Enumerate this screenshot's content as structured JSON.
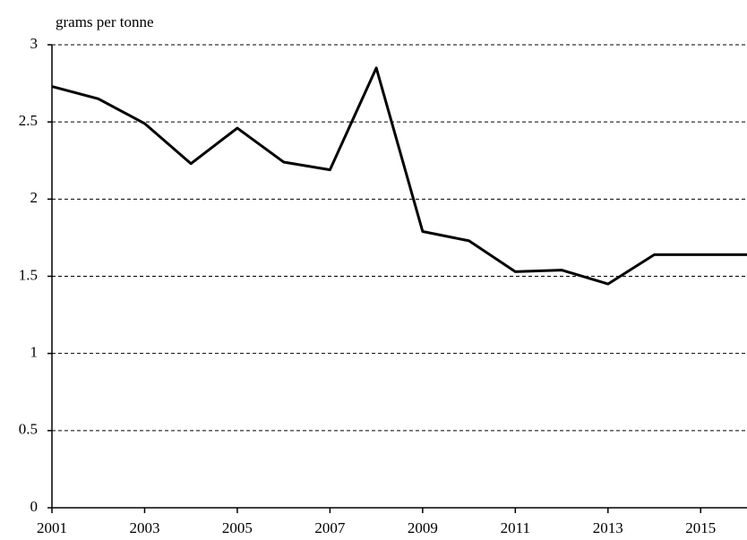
{
  "chart_data": {
    "type": "line",
    "y_label": "grams per tonne",
    "x": [
      2001,
      2002,
      2003,
      2004,
      2005,
      2006,
      2007,
      2008,
      2009,
      2010,
      2011,
      2012,
      2013,
      2014,
      2015,
      2016
    ],
    "series": [
      {
        "name": null,
        "color": "#000000",
        "values": [
          2.73,
          2.65,
          2.49,
          2.23,
          2.46,
          2.24,
          2.19,
          2.85,
          1.79,
          1.73,
          1.53,
          1.54,
          1.45,
          1.64,
          1.64,
          1.64
        ]
      }
    ],
    "xlim": [
      2001,
      2016
    ],
    "xticks": [
      2001,
      2003,
      2005,
      2007,
      2009,
      2011,
      2013,
      2015
    ],
    "ylim": [
      0,
      3
    ],
    "yticks": [
      0,
      0.5,
      1,
      1.5,
      2,
      2.5,
      3
    ],
    "grid": true
  }
}
